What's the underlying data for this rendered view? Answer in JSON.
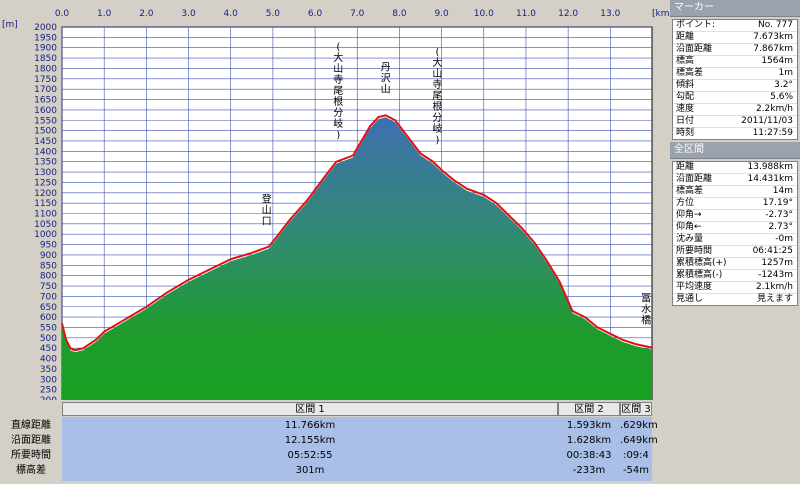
{
  "chart_data": {
    "type": "area",
    "xlabel": "",
    "ylabel": "",
    "x_unit": "[km]",
    "y_unit": "[m]",
    "xlim": [
      0,
      13.988
    ],
    "ylim": [
      200,
      2000
    ],
    "x_ticks": [
      "0.0",
      "1.0",
      "2.0",
      "3.0",
      "4.0",
      "5.0",
      "6.0",
      "7.0",
      "8.0",
      "9.0",
      "10.0",
      "11.0",
      "12.0",
      "13.0"
    ],
    "y_ticks": [
      "200",
      "250",
      "300",
      "350",
      "400",
      "450",
      "500",
      "550",
      "600",
      "650",
      "700",
      "750",
      "800",
      "850",
      "900",
      "950",
      "1000",
      "1050",
      "1100",
      "1150",
      "1200",
      "1250",
      "1300",
      "1350",
      "1400",
      "1450",
      "1500",
      "1550",
      "1600",
      "1650",
      "1700",
      "1750",
      "1800",
      "1850",
      "1900",
      "1950",
      "2000"
    ],
    "grid": true,
    "series": [
      {
        "x": [
          0.0,
          0.05,
          0.1,
          0.2,
          0.3,
          0.5,
          0.8,
          1.0,
          1.5,
          2.0,
          2.5,
          3.0,
          3.5,
          4.0,
          4.5,
          4.9,
          5.1,
          5.4,
          5.8,
          6.2,
          6.5,
          6.9,
          7.1,
          7.3,
          7.5,
          7.673,
          7.9,
          8.2,
          8.5,
          8.8,
          9.0,
          9.3,
          9.6,
          10.0,
          10.3,
          10.6,
          10.9,
          11.2,
          11.5,
          11.8,
          12.1,
          12.4,
          12.7,
          13.0,
          13.3,
          13.6,
          13.988
        ],
        "y": [
          560,
          520,
          480,
          440,
          430,
          440,
          480,
          520,
          580,
          640,
          710,
          770,
          820,
          870,
          900,
          930,
          980,
          1060,
          1150,
          1260,
          1340,
          1370,
          1440,
          1510,
          1555,
          1564,
          1540,
          1460,
          1380,
          1340,
          1300,
          1250,
          1210,
          1180,
          1140,
          1080,
          1020,
          950,
          860,
          760,
          620,
          590,
          540,
          510,
          480,
          460,
          443
        ]
      }
    ],
    "markers": [
      {
        "x": 4.85,
        "label": "登山口"
      },
      {
        "x": 6.55,
        "label": "(大山寺尾根分岐)"
      },
      {
        "x": 7.673,
        "label": "丹沢山"
      },
      {
        "x": 8.9,
        "label": "(大山寺尾根分岐)"
      },
      {
        "x": 13.85,
        "label": "冨水橋"
      }
    ]
  },
  "marker_panel": {
    "title": "マーカー",
    "rows": [
      {
        "k": "ポイント:",
        "v": "No. 777"
      },
      {
        "k": "距離",
        "v": "7.673km"
      },
      {
        "k": "沿面距離",
        "v": "7.867km"
      },
      {
        "k": "標高",
        "v": "1564m"
      },
      {
        "k": "標高差",
        "v": "1m"
      },
      {
        "k": "傾斜",
        "v": "3.2°"
      },
      {
        "k": "勾配",
        "v": "5.6%"
      },
      {
        "k": "速度",
        "v": "2.2km/h"
      },
      {
        "k": "日付",
        "v": "2011/11/03"
      },
      {
        "k": "時刻",
        "v": "11:27:59"
      }
    ]
  },
  "total_panel": {
    "title": "全区間",
    "rows": [
      {
        "k": "距離",
        "v": "13.988km"
      },
      {
        "k": "沿面距離",
        "v": "14.431km"
      },
      {
        "k": "標高差",
        "v": "14m"
      },
      {
        "k": "方位",
        "v": "17.19°"
      },
      {
        "k": "仰角→",
        "v": "-2.73°"
      },
      {
        "k": "仰角←",
        "v": "2.73°"
      },
      {
        "k": "沈み量",
        "v": "-0m"
      },
      {
        "k": "所要時間",
        "v": "06:41:25"
      },
      {
        "k": "累積標高(+)",
        "v": "1257m"
      },
      {
        "k": "累積標高(-)",
        "v": "-1243m"
      },
      {
        "k": "平均速度",
        "v": "2.1km/h"
      },
      {
        "k": "見通し",
        "v": "見えます"
      }
    ]
  },
  "sections": {
    "headers": [
      "区間 1",
      "区間 2",
      "区間 3"
    ],
    "row_labels": [
      "直線距離",
      "沿面距離",
      "所要時間",
      "標高差"
    ],
    "values": [
      [
        "11.766km",
        "12.155km",
        "05:52:55",
        "301m"
      ],
      [
        "1.593km",
        "1.628km",
        "00:38:43",
        "-233m"
      ],
      [
        ".629km",
        ".649km",
        ":09:4",
        "-54m"
      ]
    ]
  }
}
